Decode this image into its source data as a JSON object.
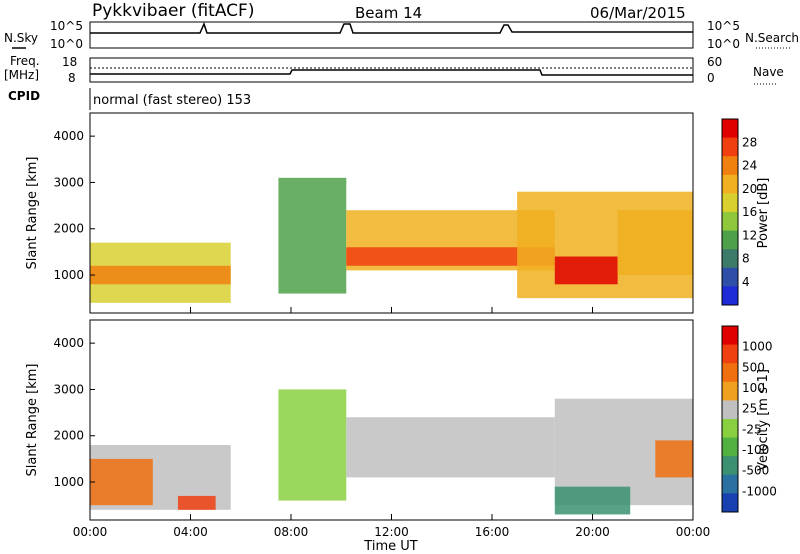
{
  "header": {
    "station": "Pykkvibaer (fitACF)",
    "beam": "Beam 14",
    "date": "06/Mar/2015"
  },
  "status_panels": {
    "nsky_label": "N.Sky",
    "nsearch_label": "N.Search",
    "noise_ticks": [
      "10^5",
      "10^0"
    ],
    "freq_label_line1": "Freq.",
    "freq_label_line2": "[MHz]",
    "freq_ticks": [
      "18",
      "8"
    ],
    "nave_label": "Nave",
    "nave_ticks": [
      "60",
      "0"
    ],
    "cpid_label": "CPID",
    "cpid_text": "normal (fast stereo) 153"
  },
  "chart_data": [
    {
      "type": "heatmap",
      "title": "",
      "xlabel": "",
      "ylabel": "Slant Range [km]",
      "x_ticks": [
        "00:00",
        "04:00",
        "08:00",
        "12:00",
        "16:00",
        "20:00",
        "00:00"
      ],
      "xlim_hours": [
        0,
        24
      ],
      "ylim": [
        180,
        4500
      ],
      "y_ticks": [
        1000,
        2000,
        3000,
        4000
      ],
      "colorbar": {
        "label": "Power [dB]",
        "ticks": [
          "4",
          "8",
          "12",
          "16",
          "20",
          "24",
          "28"
        ],
        "colors": [
          "#1e2bd6",
          "#2e4fa8",
          "#3c7a6a",
          "#4fa04a",
          "#8fc83a",
          "#d8d030",
          "#f0b020",
          "#f08010",
          "#f04010",
          "#e00000"
        ]
      },
      "regions": [
        {
          "t0": 0.0,
          "t1": 5.6,
          "r0": 400,
          "r1": 1700,
          "level": 0.55
        },
        {
          "t0": 0.0,
          "t1": 5.6,
          "r0": 800,
          "r1": 1200,
          "level": 0.75
        },
        {
          "t0": 7.5,
          "t1": 10.2,
          "r0": 600,
          "r1": 3100,
          "level": 0.35
        },
        {
          "t0": 10.2,
          "t1": 18.5,
          "r0": 1100,
          "r1": 2400,
          "level": 0.7
        },
        {
          "t0": 10.2,
          "t1": 18.5,
          "r0": 1200,
          "r1": 1600,
          "level": 0.9
        },
        {
          "t0": 17.0,
          "t1": 24.0,
          "r0": 500,
          "r1": 2800,
          "level": 0.65
        },
        {
          "t0": 18.5,
          "t1": 21.0,
          "r0": 800,
          "r1": 1400,
          "level": 0.95
        },
        {
          "t0": 21.0,
          "t1": 24.0,
          "r0": 1000,
          "r1": 2400,
          "level": 0.7
        }
      ]
    },
    {
      "type": "heatmap",
      "title": "",
      "xlabel": "Time UT",
      "ylabel": "Slant Range [km]",
      "x_ticks": [
        "00:00",
        "04:00",
        "08:00",
        "12:00",
        "16:00",
        "20:00",
        "00:00"
      ],
      "xlim_hours": [
        0,
        24
      ],
      "ylim": [
        180,
        4500
      ],
      "y_ticks": [
        1000,
        2000,
        3000,
        4000
      ],
      "colorbar": {
        "label": "Velocity [m s-1]",
        "ticks": [
          "1000",
          "500",
          "100",
          "25",
          "-25",
          "-100",
          "-500",
          "-1000"
        ],
        "colors": [
          "#1840b0",
          "#2a70a0",
          "#3a9070",
          "#50b040",
          "#88d040",
          "#c0c0c0",
          "#f0a020",
          "#f07010",
          "#f04010",
          "#e00000"
        ]
      },
      "regions": [
        {
          "t0": 0.0,
          "t1": 5.6,
          "r0": 400,
          "r1": 1800,
          "level": 0.5
        },
        {
          "t0": 0.0,
          "t1": 2.5,
          "r0": 500,
          "r1": 1500,
          "level": 0.8
        },
        {
          "t0": 3.5,
          "t1": 5.0,
          "r0": 400,
          "r1": 700,
          "level": 0.85
        },
        {
          "t0": 7.5,
          "t1": 10.2,
          "r0": 600,
          "r1": 3000,
          "level": 0.4
        },
        {
          "t0": 10.2,
          "t1": 18.5,
          "r0": 1100,
          "r1": 2400,
          "level": 0.5
        },
        {
          "t0": 18.5,
          "t1": 24.0,
          "r0": 500,
          "r1": 2800,
          "level": 0.5
        },
        {
          "t0": 18.5,
          "t1": 21.5,
          "r0": 300,
          "r1": 900,
          "level": 0.2
        },
        {
          "t0": 22.5,
          "t1": 24.0,
          "r0": 1100,
          "r1": 1900,
          "level": 0.8
        }
      ]
    }
  ]
}
